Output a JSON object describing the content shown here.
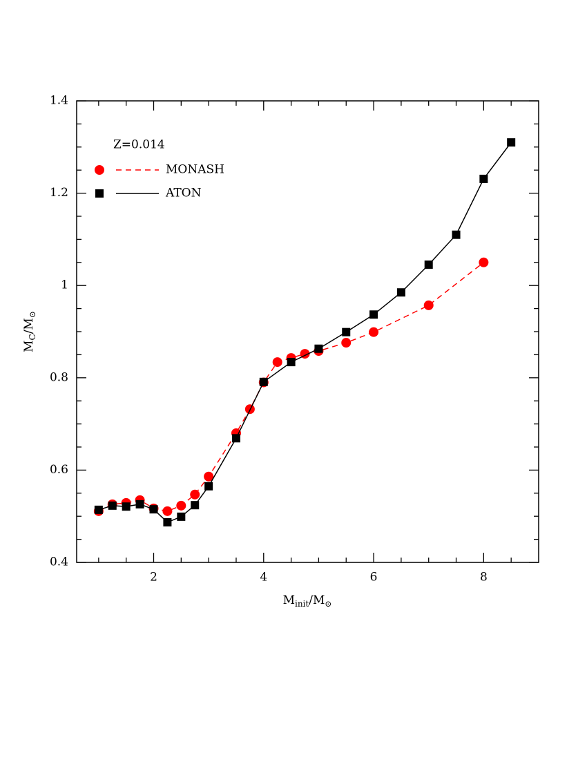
{
  "chart_data": {
    "type": "line",
    "annotation": "Z=0.014",
    "xlabel": [
      "M",
      "init",
      "/M",
      "⊙"
    ],
    "ylabel": [
      "M",
      "C",
      "/M",
      "⊙"
    ],
    "xlim": [
      0.6,
      9
    ],
    "ylim": [
      0.4,
      1.4
    ],
    "xticks": [
      2,
      4,
      6,
      8
    ],
    "yticks": [
      0.4,
      0.6,
      0.8,
      1,
      1.2,
      1.4
    ],
    "xminorticks": [
      1,
      1.5,
      2.5,
      3,
      3.5,
      4.5,
      5,
      5.5,
      6.5,
      7,
      7.5,
      8.5
    ],
    "yminorticks": [
      0.45,
      0.5,
      0.55,
      0.65,
      0.7,
      0.75,
      0.85,
      0.9,
      0.95,
      1.05,
      1.1,
      1.15,
      1.25,
      1.3,
      1.35
    ],
    "series": [
      {
        "name": "MONASH",
        "color": "#ff0000",
        "marker": "circle",
        "dashed": true,
        "x": [
          1,
          1.25,
          1.5,
          1.75,
          2,
          2.25,
          2.5,
          2.75,
          3,
          3.5,
          3.75,
          4,
          4.25,
          4.5,
          4.75,
          5,
          5.5,
          6,
          7,
          8
        ],
        "values": [
          0.511,
          0.526,
          0.529,
          0.535,
          0.517,
          0.511,
          0.523,
          0.547,
          0.586,
          0.68,
          0.732,
          0.79,
          0.834,
          0.843,
          0.852,
          0.858,
          0.876,
          0.899,
          0.957,
          1.05
        ]
      },
      {
        "name": "ATON",
        "color": "#000000",
        "marker": "square",
        "dashed": false,
        "x": [
          1,
          1.25,
          1.5,
          1.75,
          2,
          2.25,
          2.5,
          2.75,
          3,
          3.5,
          4,
          4.5,
          5,
          5.5,
          6,
          6.5,
          7,
          7.5,
          8,
          8.5
        ],
        "values": [
          0.514,
          0.523,
          0.521,
          0.526,
          0.515,
          0.487,
          0.499,
          0.524,
          0.565,
          0.669,
          0.791,
          0.834,
          0.863,
          0.899,
          0.937,
          0.985,
          1.045,
          1.11,
          1.231,
          1.31
        ]
      }
    ]
  }
}
